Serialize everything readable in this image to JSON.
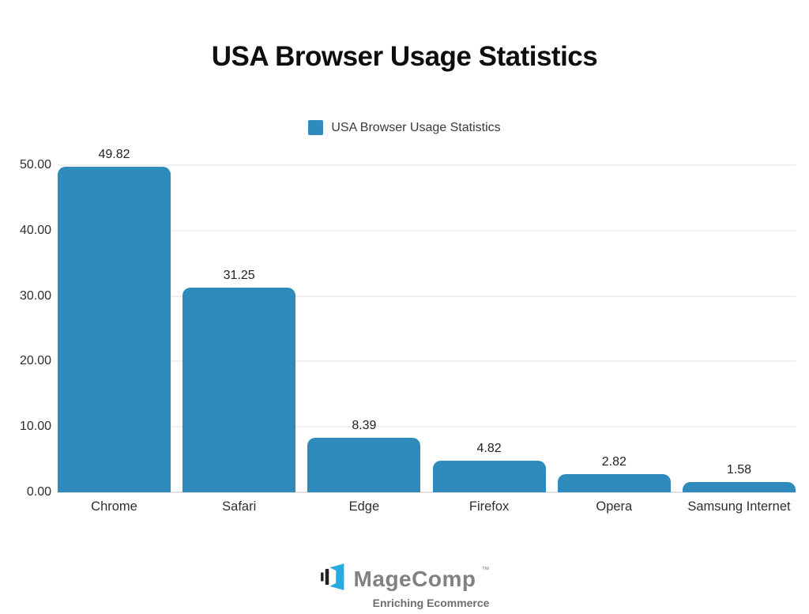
{
  "title": "USA Browser Usage Statistics",
  "legend": {
    "label": "USA Browser Usage Statistics",
    "swatch_color": "#2E8BBC"
  },
  "chart_data": {
    "type": "bar",
    "title": "USA Browser Usage Statistics",
    "categories": [
      "Chrome",
      "Safari",
      "Edge",
      "Firefox",
      "Opera",
      "Samsung Internet"
    ],
    "values": [
      49.82,
      31.25,
      8.39,
      4.82,
      2.82,
      1.58
    ],
    "value_labels": [
      "49.82",
      "31.25",
      "8.39",
      "4.82",
      "2.82",
      "1.58"
    ],
    "xlabel": "",
    "ylabel": "",
    "ylim": [
      0,
      50
    ],
    "yticks": [
      0,
      10,
      20,
      30,
      40,
      50
    ],
    "ytick_labels": [
      "0.00",
      "10.00",
      "20.00",
      "30.00",
      "40.00",
      "50.00"
    ],
    "grid": true,
    "legend_position": "top-center",
    "bar_color": "#2E8BBC"
  },
  "footer": {
    "brand": "MageComp",
    "trademark": "TM",
    "tagline": "Enriching Ecommerce",
    "logo_cyan": "#29ABE2",
    "logo_dark": "#231F20"
  }
}
